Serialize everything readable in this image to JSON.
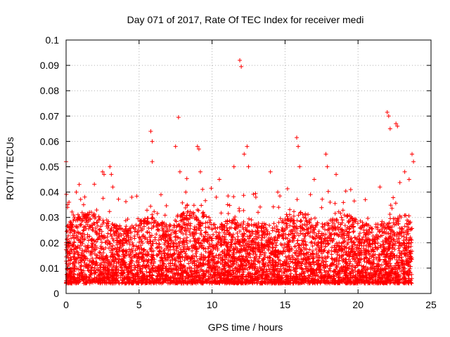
{
  "chart_data": {
    "type": "scatter",
    "title": "Day 071 of 2017, Rate Of TEC Index for receiver medi",
    "xlabel": "GPS time / hours",
    "ylabel": "ROTI / TECUs",
    "xlim": [
      0,
      25
    ],
    "ylim": [
      0,
      0.1
    ],
    "xticks": [
      0,
      5,
      10,
      15,
      20,
      25
    ],
    "xtick_labels": [
      "0",
      "5",
      "10",
      "15",
      "20",
      "25"
    ],
    "yticks": [
      0,
      0.01,
      0.02,
      0.03,
      0.04,
      0.05,
      0.06,
      0.07,
      0.08,
      0.09,
      0.1
    ],
    "ytick_labels": [
      "0",
      "0.01",
      "0.02",
      "0.03",
      "0.04",
      "0.05",
      "0.06",
      "0.07",
      "0.08",
      "0.09",
      "0.1"
    ],
    "grid": true,
    "marker": "+",
    "color": "#ff0000",
    "series": [
      {
        "name": "ROTI",
        "x": [
          0.0,
          0.1,
          0.1,
          0.2,
          0.5,
          0.7,
          0.9,
          1.2,
          1.5,
          2.5,
          2.6,
          3.0,
          3.1,
          3.2,
          4.5,
          5.8,
          5.9,
          5.9,
          6.5,
          7.5,
          7.7,
          7.8,
          8.2,
          9.0,
          9.1,
          9.2,
          10.5,
          11.5,
          11.9,
          12.0,
          12.2,
          12.4,
          12.5,
          13.0,
          14.0,
          14.5,
          15.8,
          15.9,
          16.0,
          17.0,
          17.8,
          17.9,
          18.5,
          19.5,
          20.5,
          21.5,
          22.0,
          22.1,
          22.2,
          22.6,
          22.7,
          23.2,
          23.5,
          23.7,
          23.8
        ],
        "y": [
          0.052,
          0.035,
          0.034,
          0.036,
          0.031,
          0.04,
          0.043,
          0.035,
          0.03,
          0.048,
          0.047,
          0.05,
          0.047,
          0.042,
          0.038,
          0.064,
          0.06,
          0.052,
          0.039,
          0.058,
          0.0695,
          0.048,
          0.04,
          0.058,
          0.057,
          0.048,
          0.045,
          0.05,
          0.092,
          0.0895,
          0.055,
          0.058,
          0.05,
          0.038,
          0.048,
          0.04,
          0.0615,
          0.058,
          0.05,
          0.045,
          0.055,
          0.05,
          0.047,
          0.041,
          0.037,
          0.042,
          0.0715,
          0.07,
          0.065,
          0.067,
          0.066,
          0.048,
          0.045,
          0.055,
          0.052
        ]
      }
    ],
    "density_band": {
      "x_range": [
        0,
        23.7
      ],
      "typical_min": 0.004,
      "typical_max": 0.025
    }
  }
}
